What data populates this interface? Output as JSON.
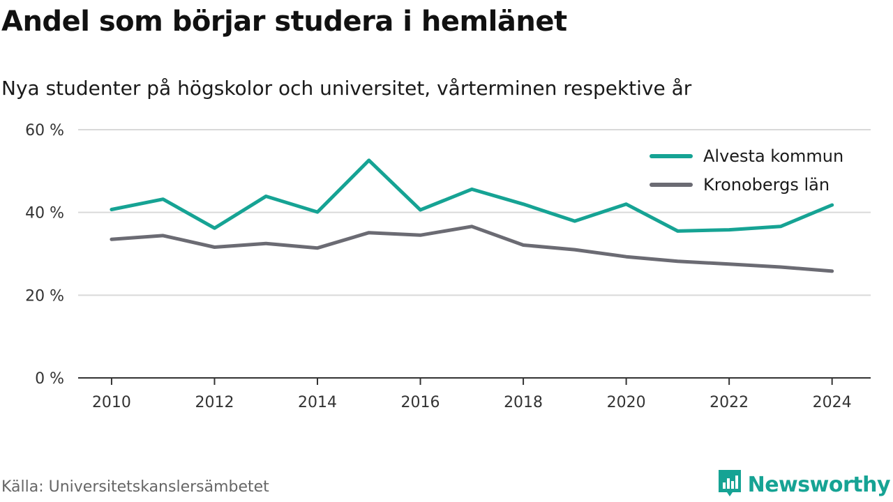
{
  "header": {
    "title": "Andel som börjar studera i hemlänet",
    "subtitle": "Nya studenter på högskolor och universitet, vårterminen respektive år"
  },
  "footer": {
    "source": "Källa: Universitetskanslersämbetet",
    "brand": "Newsworthy",
    "brand_icon": "newsworthy-logo-icon"
  },
  "colors": {
    "alvesta": "#16a394",
    "kronoberg": "#6b6b73",
    "grid": "#d9d9d9",
    "axis": "#333333"
  },
  "chart_data": {
    "type": "line",
    "title": "Andel som börjar studera i hemlänet",
    "subtitle": "Nya studenter på högskolor och universitet, vårterminen respektive år",
    "x": [
      2010,
      2011,
      2012,
      2013,
      2014,
      2015,
      2016,
      2017,
      2018,
      2019,
      2020,
      2021,
      2022,
      2023,
      2024
    ],
    "xticks": [
      2010,
      2012,
      2014,
      2016,
      2018,
      2020,
      2022,
      2024
    ],
    "xlim": [
      2009.35,
      2024.75
    ],
    "yticks": [
      {
        "value": 0,
        "label": "0 %"
      },
      {
        "value": 20,
        "label": "20 %"
      },
      {
        "value": 40,
        "label": "40 %"
      },
      {
        "value": 60,
        "label": "60 %"
      }
    ],
    "ylim": [
      0,
      60
    ],
    "grid": true,
    "legend_position": "top-right",
    "series": [
      {
        "name": "Alvesta kommun",
        "color": "#16a394",
        "values": [
          40.7,
          43.2,
          36.2,
          43.9,
          40.1,
          52.6,
          40.6,
          45.6,
          42.0,
          37.9,
          42.0,
          35.5,
          35.8,
          36.6,
          41.8
        ]
      },
      {
        "name": "Kronobergs län",
        "color": "#6b6b73",
        "values": [
          33.5,
          34.4,
          31.6,
          32.5,
          31.4,
          35.1,
          34.5,
          36.6,
          32.1,
          31.0,
          29.3,
          28.2,
          27.5,
          26.8,
          25.8
        ]
      }
    ]
  }
}
